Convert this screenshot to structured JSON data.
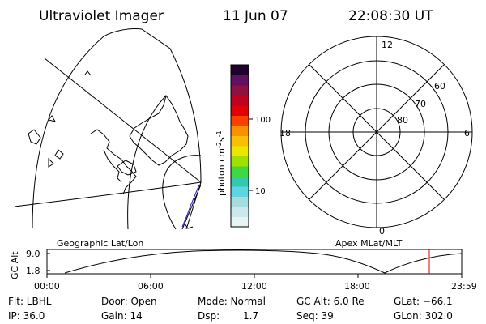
{
  "header": {
    "title": "Ultraviolet Imager",
    "date": "11 Jun 07",
    "time": "22:08:30 UT"
  },
  "colorbar": {
    "unit_label": "photon cm",
    "unit_sup1": "-2",
    "unit_mid": "s",
    "unit_sup2": "-1",
    "ticks": [
      "100",
      "10"
    ],
    "colors": [
      "#e8f4f4",
      "#cce8ec",
      "#a8dcdc",
      "#60d4e0",
      "#30c8b0",
      "#40d840",
      "#a0e000",
      "#e8e800",
      "#f8c000",
      "#f89000",
      "#f84000",
      "#e00000",
      "#c00020",
      "#901040",
      "#601060",
      "#200030"
    ]
  },
  "polar": {
    "labels": {
      "top": "12",
      "bottom": "0",
      "left": "18",
      "right": "6",
      "r60": "60",
      "r70": "70",
      "r80": "80"
    }
  },
  "orbit": {
    "title_left": "Geographic Lat/Lon",
    "title_right": "Apex MLat/MLT",
    "ylabel": "GC Alt",
    "y_ticks": [
      "9.0",
      "1.8"
    ],
    "x_ticks": [
      "00:00",
      "06:00",
      "12:00",
      "18:00",
      "23:59"
    ],
    "marker_color": "#e00000"
  },
  "footer": {
    "row1": {
      "filter": "Flt: LBHL",
      "door": "Door: Open",
      "mode": "Mode: Normal",
      "gcalt": "GC Alt: 6.0 Re",
      "glat": "GLat: −66.1"
    },
    "row2": {
      "ip": "IP: 36.0",
      "gain": "Gain: 14",
      "dsp_label": "Dsp:",
      "dsp_value": "1.7",
      "seq": "Seq: 39",
      "glon": "GLon: 302.0"
    }
  }
}
